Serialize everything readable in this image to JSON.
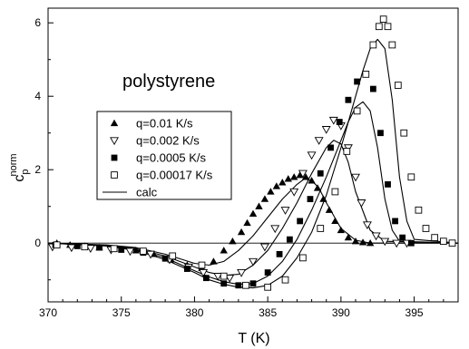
{
  "chart_data": {
    "type": "scatter",
    "title": "",
    "annotation": "polystyrene",
    "xlabel": "T (K)",
    "ylabel": {
      "main": "c",
      "sub": "p",
      "sup": "norm"
    },
    "xlim": [
      370,
      398
    ],
    "ylim": [
      -1.6,
      6.4
    ],
    "xticks": [
      370,
      375,
      380,
      385,
      390,
      395
    ],
    "yticks": [
      0,
      2,
      4,
      6
    ],
    "grid": false,
    "zero_line": true,
    "legend": {
      "placement": "center-left"
    },
    "series": [
      {
        "name": "q=0.01 K/s",
        "marker": "filled-triangle-up",
        "x": [
          370.6,
          371.5,
          372.5,
          373.5,
          374.5,
          376.0,
          377.2,
          378.4,
          379.5,
          380.5,
          381.3,
          382.0,
          382.6,
          383.2,
          383.6,
          384.0,
          384.4,
          384.8,
          385.2,
          385.6,
          386.0,
          386.4,
          386.8,
          387.2,
          387.6,
          388.0,
          388.4,
          388.8,
          389.2,
          389.6,
          390.0,
          390.5,
          391.0,
          391.5,
          392.0
        ],
        "y": [
          0.0,
          -0.05,
          -0.08,
          -0.12,
          -0.15,
          -0.2,
          -0.3,
          -0.45,
          -0.6,
          -0.68,
          -0.5,
          -0.2,
          0.05,
          0.3,
          0.55,
          0.8,
          1.0,
          1.2,
          1.4,
          1.55,
          1.65,
          1.75,
          1.8,
          1.85,
          1.8,
          1.7,
          1.5,
          1.2,
          0.9,
          0.6,
          0.35,
          0.15,
          0.05,
          0.02,
          0.0
        ]
      },
      {
        "name": "q=0.002 K/s",
        "marker": "open-triangle-down",
        "x": [
          370.3,
          371.6,
          372.9,
          374.3,
          375.6,
          377.0,
          378.3,
          379.6,
          380.6,
          381.6,
          382.4,
          383.2,
          384.0,
          384.8,
          385.5,
          386.2,
          386.8,
          387.4,
          388.0,
          388.5,
          389.0,
          389.5,
          390.0,
          390.5,
          391.0,
          391.4,
          391.8,
          392.4,
          393.0,
          393.8,
          394.5
        ],
        "y": [
          -0.1,
          -0.12,
          -0.14,
          -0.18,
          -0.22,
          -0.3,
          -0.45,
          -0.65,
          -0.8,
          -0.9,
          -0.95,
          -0.8,
          -0.5,
          -0.1,
          0.4,
          0.9,
          1.4,
          1.9,
          2.4,
          2.8,
          3.1,
          3.35,
          3.2,
          2.6,
          1.8,
          1.1,
          0.5,
          0.2,
          0.05,
          0.0,
          0.0
        ]
      },
      {
        "name": "q=0.0005 K/s",
        "marker": "filled-square",
        "x": [
          370.5,
          372.0,
          373.5,
          375.0,
          376.5,
          378.0,
          379.5,
          380.8,
          382.0,
          383.0,
          384.0,
          385.0,
          385.8,
          386.5,
          387.2,
          387.9,
          388.6,
          389.3,
          389.9,
          390.5,
          391.1,
          391.7,
          392.2,
          392.7,
          393.2,
          393.7,
          394.2,
          394.8
        ],
        "y": [
          -0.05,
          -0.08,
          -0.12,
          -0.18,
          -0.26,
          -0.42,
          -0.7,
          -0.95,
          -1.1,
          -1.15,
          -1.1,
          -0.8,
          -0.3,
          0.1,
          0.6,
          1.2,
          1.9,
          2.6,
          3.3,
          3.9,
          4.4,
          4.6,
          4.2,
          3.0,
          1.6,
          0.6,
          0.15,
          0.0
        ]
      },
      {
        "name": "q=0.00017 K/s",
        "marker": "open-square",
        "x": [
          370.6,
          372.5,
          374.5,
          376.5,
          378.5,
          380.5,
          382.0,
          383.5,
          385.0,
          386.2,
          387.4,
          388.6,
          389.6,
          390.4,
          391.1,
          391.7,
          392.2,
          392.6,
          392.9,
          393.2,
          393.5,
          393.9,
          394.3,
          394.8,
          395.3,
          395.8,
          396.4,
          397.0,
          397.6
        ],
        "y": [
          -0.05,
          -0.1,
          -0.15,
          -0.22,
          -0.35,
          -0.6,
          -0.9,
          -1.15,
          -1.2,
          -1.0,
          -0.4,
          0.4,
          1.4,
          2.5,
          3.6,
          4.6,
          5.4,
          5.9,
          6.1,
          5.9,
          5.4,
          4.3,
          3.0,
          1.8,
          0.9,
          0.4,
          0.15,
          0.05,
          0.0
        ]
      },
      {
        "name": "calc",
        "marker": "line",
        "curves": [
          {
            "x": [
              370,
              374,
              376,
              378,
              380,
              381,
              382,
              383,
              384,
              385,
              386,
              387,
              387.5,
              388,
              388.5,
              389,
              390,
              391,
              392,
              398
            ],
            "y": [
              0,
              -0.05,
              -0.12,
              -0.3,
              -0.55,
              -0.6,
              -0.5,
              -0.2,
              0.2,
              0.7,
              1.2,
              1.6,
              1.75,
              1.7,
              1.5,
              1.1,
              0.4,
              0.08,
              0.0,
              0.0
            ]
          },
          {
            "x": [
              370,
              374,
              376,
              378,
              380,
              381,
              382,
              383,
              384,
              385,
              386,
              387,
              388,
              389,
              389.5,
              390,
              390.5,
              391,
              392,
              393,
              398
            ],
            "y": [
              0,
              -0.06,
              -0.15,
              -0.35,
              -0.65,
              -0.8,
              -0.88,
              -0.85,
              -0.6,
              -0.2,
              0.4,
              1.1,
              1.9,
              2.6,
              2.8,
              2.7,
              2.2,
              1.4,
              0.35,
              0.05,
              0.0
            ]
          },
          {
            "x": [
              370,
              374,
              376,
              378,
              380,
              381,
              382,
              383,
              384,
              385,
              386,
              387,
              388,
              389,
              390,
              390.5,
              391,
              391.5,
              392,
              392.5,
              393,
              393.5,
              394,
              398
            ],
            "y": [
              0,
              -0.07,
              -0.18,
              -0.4,
              -0.75,
              -0.92,
              -1.05,
              -1.12,
              -1.1,
              -0.9,
              -0.5,
              0.1,
              0.9,
              1.8,
              2.8,
              3.3,
              3.7,
              3.85,
              3.6,
              2.6,
              1.2,
              0.35,
              0.05,
              0.0
            ]
          },
          {
            "x": [
              370,
              374,
              376,
              378,
              380,
              381,
              382,
              383,
              384,
              385,
              386,
              387,
              388,
              389,
              390,
              391,
              391.5,
              392,
              392.5,
              393,
              393.5,
              394,
              394.5,
              395,
              398
            ],
            "y": [
              0,
              -0.08,
              -0.2,
              -0.45,
              -0.8,
              -1.0,
              -1.12,
              -1.2,
              -1.22,
              -1.15,
              -0.9,
              -0.4,
              0.3,
              1.3,
              2.6,
              4.0,
              4.7,
              5.3,
              5.55,
              5.3,
              3.9,
              1.8,
              0.6,
              0.1,
              0.0
            ]
          }
        ]
      }
    ]
  }
}
